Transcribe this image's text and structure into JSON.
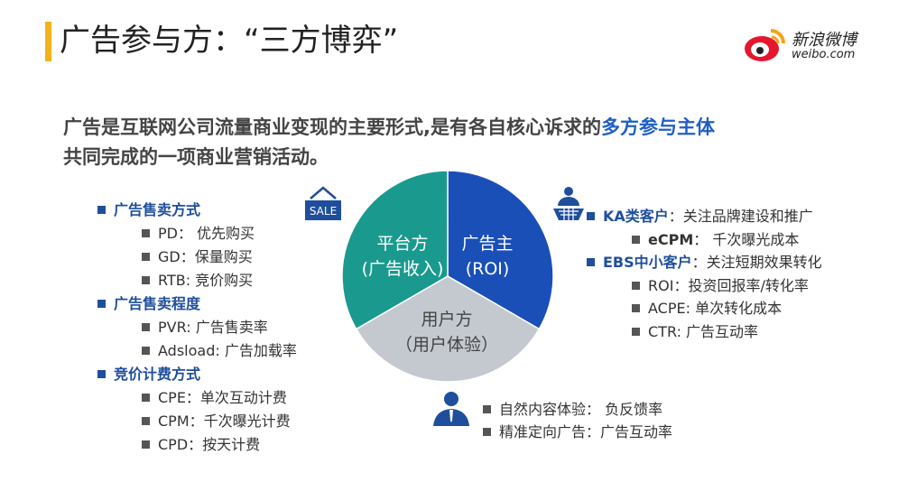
{
  "title": "广告参与方：“三方博弈”",
  "logo": {
    "name": "新浪微博",
    "url": "weibo.com"
  },
  "lead": {
    "line1_a": "广告是互联网公司流量商业变现的主要形式,是有各自核心诉求的",
    "line1_highlight": "多方参与主体",
    "line2": "共同完成的一项商业营销活动。"
  },
  "colors": {
    "accent": "#f2b21b",
    "teal": "#1a9a8e",
    "blue": "#1a4fb8",
    "grey": "#c4c9d0",
    "heading_blue": "#1f4e9c"
  },
  "pie": {
    "slices": [
      {
        "name": "广告主",
        "sub": "(ROI)",
        "share": 0.3333
      },
      {
        "name": "用户方",
        "sub": "（用户体验）",
        "share": 0.3333
      },
      {
        "name": "平台方",
        "sub": "(广告收入)",
        "share": 0.3333
      }
    ]
  },
  "sale_icon": "SALE",
  "left": [
    {
      "heading": "广告售卖方式",
      "items": [
        "PD： 优先购买",
        "GD：保量购买",
        "RTB: 竞价购买"
      ]
    },
    {
      "heading": "广告售卖程度",
      "items": [
        "PVR: 广告售卖率",
        "Adsload: 广告加载率"
      ]
    },
    {
      "heading": "竞价计费方式",
      "items": [
        "CPE：单次互动计费",
        "CPM：千次曝光计费",
        "CPD：按天计费"
      ]
    }
  ],
  "right": [
    {
      "heading": "KA类客户",
      "desc": "：关注品牌建设和推广",
      "items": [
        {
          "key": "eCPM",
          "val": "： 千次曝光成本"
        }
      ]
    },
    {
      "heading": "EBS中小客户",
      "desc": "：关注短期效果转化",
      "items": [
        {
          "key": "ROI",
          "val": "：投资回报率/转化率"
        },
        {
          "key": "ACPE",
          "val": ": 单次转化成本"
        },
        {
          "key": "CTR",
          "val": ": 广告互动率"
        }
      ]
    }
  ],
  "user": [
    "自然内容体验： 负反馈率",
    "精准定向广告：广告互动率"
  ]
}
